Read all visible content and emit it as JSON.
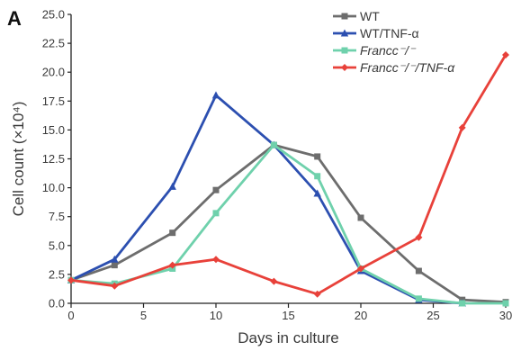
{
  "panel_label": "A",
  "chart_data": {
    "type": "line",
    "xlabel": "Days in culture",
    "ylabel": "Cell count (×10⁴)",
    "xlim": [
      0,
      30
    ],
    "ylim": [
      0,
      25
    ],
    "x_ticks": [
      "0",
      "5",
      "10",
      "15",
      "20",
      "25",
      "30"
    ],
    "y_ticks": [
      "0.0",
      "2.5",
      "5.0",
      "7.5",
      "10.0",
      "12.5",
      "15.0",
      "17.5",
      "20.0",
      "22.5",
      "25.0"
    ],
    "grid": false,
    "legend_position": "top-right",
    "series": [
      {
        "name": "WT",
        "color": "#6d6d6d",
        "marker": "square",
        "italic": false,
        "x": [
          0,
          3,
          7,
          10,
          14,
          17,
          20,
          24,
          27,
          30
        ],
        "values": [
          2.0,
          3.3,
          6.1,
          9.8,
          13.7,
          12.7,
          7.4,
          2.8,
          0.3,
          0.1
        ]
      },
      {
        "name": "WT/TNF-α",
        "color": "#2c4fb0",
        "marker": "triangle",
        "italic": false,
        "x": [
          0,
          3,
          7,
          10,
          14,
          17,
          20,
          24,
          27
        ],
        "values": [
          2.0,
          3.8,
          10.1,
          18.0,
          13.7,
          9.5,
          2.8,
          0.3,
          0.0
        ]
      },
      {
        "name": "Francc⁻/⁻",
        "color": "#6fd1ac",
        "marker": "square",
        "italic": true,
        "x": [
          0,
          3,
          7,
          10,
          14,
          17,
          20,
          24,
          27,
          30
        ],
        "values": [
          2.0,
          1.7,
          3.0,
          7.8,
          13.7,
          11.0,
          3.0,
          0.4,
          0.0,
          0.0
        ]
      },
      {
        "name": "Francc⁻/⁻/TNF-α",
        "color": "#e8413a",
        "marker": "diamond",
        "italic": true,
        "x": [
          0,
          3,
          7,
          10,
          14,
          17,
          20,
          24,
          27,
          30
        ],
        "values": [
          2.0,
          1.5,
          3.3,
          3.8,
          1.9,
          0.8,
          3.0,
          5.7,
          15.2,
          21.5
        ]
      }
    ]
  }
}
